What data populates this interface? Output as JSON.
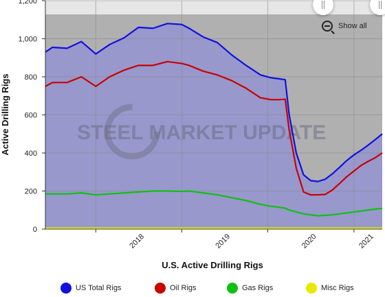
{
  "chart_data": {
    "type": "area",
    "title": "",
    "xlabel": "U.S. Active Drilling Rigs",
    "ylabel": "Active Drilling Rigs",
    "ylim": [
      0,
      1200
    ],
    "y_ticks": [
      "0",
      "200",
      "400",
      "600",
      "800",
      "1,000",
      "1,200"
    ],
    "x_ticks": [
      "2018",
      "2019",
      "2020",
      "2021"
    ],
    "x_range": [
      "2017-06-01",
      "2021-05-01"
    ],
    "watermark": "STEEL MARKET UPDATE",
    "show_all_label": "Show all",
    "legend_position": "bottom",
    "x": [
      "2017-06-01",
      "2017-07-01",
      "2017-09-01",
      "2017-11-01",
      "2018-01-01",
      "2018-03-01",
      "2018-05-01",
      "2018-07-01",
      "2018-09-01",
      "2018-11-01",
      "2019-01-01",
      "2019-02-01",
      "2019-04-01",
      "2019-06-01",
      "2019-08-01",
      "2019-10-01",
      "2019-12-01",
      "2020-01-15",
      "2020-02-15",
      "2020-03-15",
      "2020-04-01",
      "2020-05-01",
      "2020-06-01",
      "2020-07-01",
      "2020-08-01",
      "2020-09-01",
      "2020-10-01",
      "2020-11-01",
      "2020-12-01",
      "2021-01-01",
      "2021-02-01",
      "2021-03-01",
      "2021-04-01",
      "2021-05-01"
    ],
    "series": [
      {
        "name": "US Total Rigs",
        "color": "#1010e0",
        "values": [
          930,
          955,
          950,
          985,
          920,
          970,
          1005,
          1060,
          1055,
          1080,
          1075,
          1055,
          1010,
          980,
          915,
          860,
          810,
          795,
          790,
          785,
          600,
          400,
          285,
          255,
          250,
          262,
          290,
          325,
          360,
          390,
          415,
          440,
          470,
          500
        ]
      },
      {
        "name": "Oil Rigs",
        "color": "#c80000",
        "values": [
          750,
          770,
          770,
          800,
          750,
          800,
          835,
          860,
          860,
          880,
          870,
          860,
          830,
          810,
          780,
          740,
          690,
          680,
          680,
          682,
          520,
          320,
          195,
          180,
          180,
          182,
          205,
          240,
          275,
          305,
          335,
          355,
          375,
          400
        ]
      },
      {
        "name": "Gas Rigs",
        "color": "#10c010",
        "values": [
          185,
          185,
          185,
          190,
          180,
          185,
          190,
          195,
          200,
          200,
          198,
          200,
          190,
          180,
          165,
          150,
          130,
          120,
          115,
          110,
          100,
          90,
          80,
          75,
          70,
          72,
          75,
          80,
          85,
          90,
          95,
          100,
          105,
          108
        ]
      },
      {
        "name": "Misc Rigs",
        "color": "#e8e800",
        "values": [
          5,
          5,
          5,
          5,
          5,
          5,
          5,
          5,
          5,
          5,
          5,
          5,
          5,
          5,
          5,
          5,
          5,
          5,
          5,
          5,
          5,
          5,
          5,
          5,
          5,
          5,
          5,
          5,
          5,
          5,
          5,
          5,
          5,
          5
        ]
      }
    ],
    "colors": {
      "plot_background": "#b0b0b0",
      "area_fill": "#9898cc"
    }
  }
}
